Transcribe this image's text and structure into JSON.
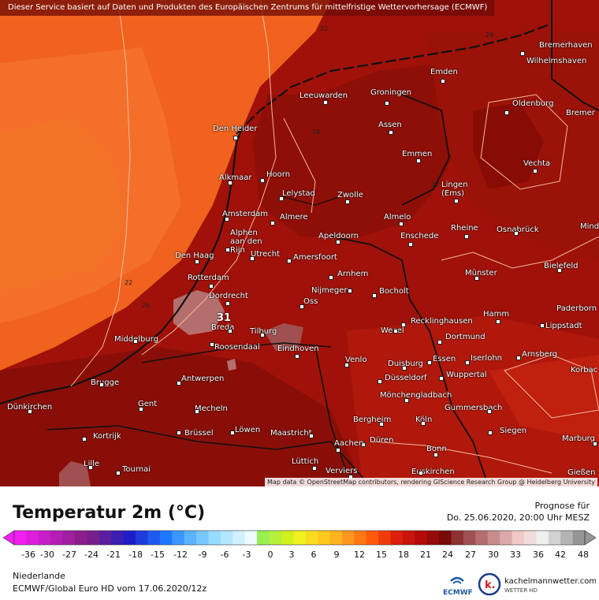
{
  "banner": "Dieser Service basiert auf Daten und Produkten des Europäischen Zentrums für mittelfristige Wettervorhersage (ECMWF)",
  "attribution": "Map data © OpenStreetMap contributors, rendering GIScience Research Group @ Heidelberg University",
  "isolines": [
    "22",
    "22",
    "26",
    "28",
    "22",
    "26"
  ],
  "cities": [
    {
      "name": "Bremerhaven"
    },
    {
      "name": "Wilhelmshaven"
    },
    {
      "name": "Emden"
    },
    {
      "name": "Oldenburg"
    },
    {
      "name": "Bremer"
    },
    {
      "name": "Leeuwarden"
    },
    {
      "name": "Groningen"
    },
    {
      "name": "Assen"
    },
    {
      "name": "Den Helder"
    },
    {
      "name": "Emmen"
    },
    {
      "name": "Vechta"
    },
    {
      "name": "Alkmaar"
    },
    {
      "name": "Hoorn"
    },
    {
      "name": "Lelystad"
    },
    {
      "name": "Zwolle"
    },
    {
      "name": "Lingen\n(Ems)"
    },
    {
      "name": "Amsterdam"
    },
    {
      "name": "Almere"
    },
    {
      "name": "Almelo"
    },
    {
      "name": "Rheine"
    },
    {
      "name": "Osnabrück"
    },
    {
      "name": "Mind"
    },
    {
      "name": "Alphen\naan den\nRijn"
    },
    {
      "name": "Apeldoorn"
    },
    {
      "name": "Enschede"
    },
    {
      "name": "Den Haag"
    },
    {
      "name": "Utrecht"
    },
    {
      "name": "Amersfoort"
    },
    {
      "name": "Bielefeld"
    },
    {
      "name": "Rotterdam"
    },
    {
      "name": "Arnhem"
    },
    {
      "name": "Münster"
    },
    {
      "name": "Dordrecht"
    },
    {
      "name": "Nijmegen"
    },
    {
      "name": "Oss"
    },
    {
      "name": "Bocholt"
    },
    {
      "name": "Paderborn"
    },
    {
      "name": "Breda"
    },
    {
      "name": "Hamm"
    },
    {
      "name": "Recklinghausen"
    },
    {
      "name": "Lippstadt"
    },
    {
      "name": "Middelburg"
    },
    {
      "name": "Tilburg"
    },
    {
      "name": "Wesel"
    },
    {
      "name": "Dortmund"
    },
    {
      "name": "Roosendaal"
    },
    {
      "name": "Eindhoven"
    },
    {
      "name": "Iserlohn"
    },
    {
      "name": "Arnsberg"
    },
    {
      "name": "Venlo"
    },
    {
      "name": "Essen"
    },
    {
      "name": "Duisburg"
    },
    {
      "name": "Wuppertal"
    },
    {
      "name": "Korbac"
    },
    {
      "name": "Brugge"
    },
    {
      "name": "Antwerpen"
    },
    {
      "name": "Düsseldorf"
    },
    {
      "name": "Mönchengladbach"
    },
    {
      "name": "Gummersbach"
    },
    {
      "name": "Dünkirchen"
    },
    {
      "name": "Gent"
    },
    {
      "name": "Mecheln"
    },
    {
      "name": "Bergheim"
    },
    {
      "name": "Köln"
    },
    {
      "name": "Siegen"
    },
    {
      "name": "Kortrijk"
    },
    {
      "name": "Brüssel"
    },
    {
      "name": "Löwen"
    },
    {
      "name": "Maastricht"
    },
    {
      "name": "Düren"
    },
    {
      "name": "Marburg"
    },
    {
      "name": "Aachen"
    },
    {
      "name": "Bonn"
    },
    {
      "name": "Lille"
    },
    {
      "name": "Lüttich"
    },
    {
      "name": "Tournai"
    },
    {
      "name": "Verviers"
    },
    {
      "name": "Euskirchen"
    },
    {
      "name": "Gießen"
    }
  ],
  "marker_value": "31",
  "legend": {
    "title": "Temperatur 2m (°C)",
    "forecast_label": "Prognose für",
    "forecast_time": "Do. 25.06.2020, 20:00 Uhr MESZ",
    "ticks": [
      "-36",
      "-30",
      "-27",
      "-24",
      "-21",
      "-18",
      "-15",
      "-12",
      "-9",
      "-6",
      "-3",
      "0",
      "3",
      "6",
      "9",
      "12",
      "15",
      "18",
      "21",
      "24",
      "27",
      "30",
      "33",
      "36",
      "42",
      "48"
    ],
    "colors": [
      "#f01ef0",
      "#dc1edc",
      "#c81ec8",
      "#b41eb4",
      "#a01ea0",
      "#8c1e8c",
      "#781e8c",
      "#5a1e9c",
      "#3c1eb0",
      "#1e1ec8",
      "#1e3cdc",
      "#1e5af0",
      "#1e78ff",
      "#3c96ff",
      "#5ab4ff",
      "#78c8ff",
      "#96dcff",
      "#b4e6ff",
      "#d2f0ff",
      "#f0faff",
      "#96f050",
      "#b4f03c",
      "#d2f01e",
      "#f0f01e",
      "#fadc1e",
      "#ffc81e",
      "#ffb41e",
      "#ff961e",
      "#ff7814",
      "#ff5a0a",
      "#f03c0a",
      "#dc1e0a",
      "#c8140a",
      "#b40a0a",
      "#960a0a",
      "#780a0a",
      "#8c3232",
      "#a05050",
      "#b46e6e",
      "#c88c8c",
      "#dcaaaa",
      "#f0c8c8",
      "#f0dcdc",
      "#f0f0f0",
      "#d2d2d2",
      "#b4b4b4",
      "#969696"
    ]
  },
  "region": "Niederlande",
  "model": "ECMWF/Global Euro HD vom  17.06.2020/12z",
  "logos": {
    "ecmwf": "ECMWF",
    "km_name": "kachelmannwetter.com",
    "km_sub": "WETTER HD",
    "km_letter": "k."
  }
}
